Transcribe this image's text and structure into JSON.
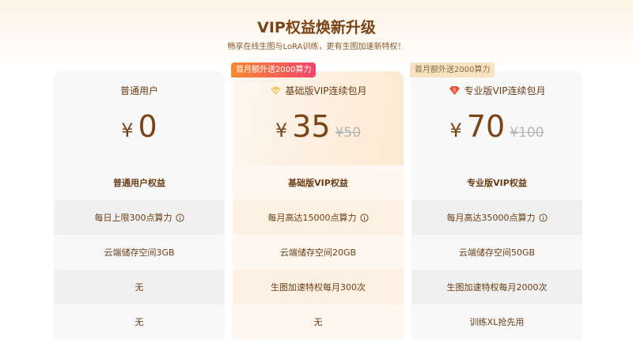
{
  "header": {
    "title": "VIP权益焕新升级",
    "subtitle": "畅享在线生图与LoRA训练，更有生图加速新特权！"
  },
  "plans": [
    {
      "name": "普通用户",
      "currency": "¥",
      "price": "0",
      "original_price": null,
      "tag": null,
      "icon": null,
      "benefits": [
        "普通用户权益",
        "每日上限300点算力",
        "云端储存空间3GB",
        "无",
        "无"
      ]
    },
    {
      "name": "基础版VIP连续包月",
      "currency": "¥",
      "price": "35",
      "original_price": "¥50",
      "tag": "首月额外送2000算力",
      "icon": "gold-badge-icon",
      "benefits": [
        "基础版VIP权益",
        "每月高达15000点算力",
        "云端储存空间20GB",
        "生图加速特权每月300次",
        "无"
      ]
    },
    {
      "name": "专业版VIP连续包月",
      "currency": "¥",
      "price": "70",
      "original_price": "¥100",
      "tag": "首月额外送2000算力",
      "icon": "red-gem-icon",
      "benefits": [
        "专业版VIP权益",
        "每月高达35000点算力",
        "云端储存空间50GB",
        "生图加速特权每月2000次",
        "训练XL抢先用"
      ]
    }
  ],
  "colors": {
    "brand_brown": "#7a4416",
    "tag_gradient_start": "#f7892f",
    "tag_gradient_end": "#f2446b"
  }
}
